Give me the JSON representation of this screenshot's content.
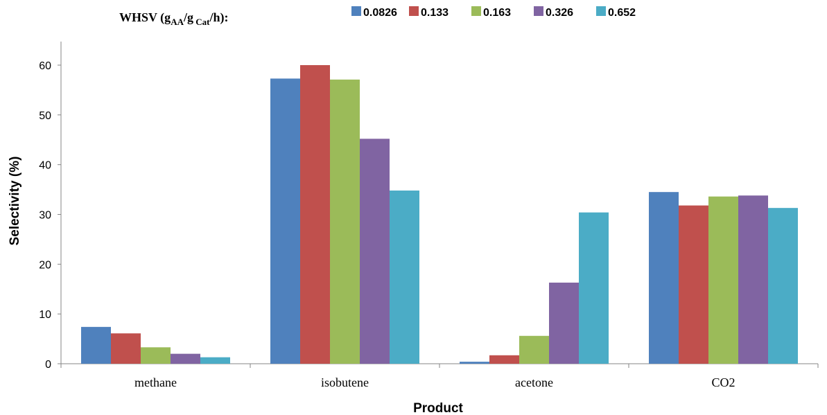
{
  "chart_data": {
    "type": "bar",
    "xlabel": "Product",
    "ylabel": "Selectivity (%)",
    "ylim": [
      0,
      60
    ],
    "yticks": [
      0,
      10,
      20,
      30,
      40,
      50,
      60
    ],
    "categories": [
      "methane",
      "isobutene",
      "acetone",
      "CO2"
    ],
    "legend": {
      "placement": "top",
      "prefix": {
        "main": "WHSV (g",
        "sub1": "AA",
        "mid": "/g",
        "sub2": " Cat",
        "end": "/h):"
      }
    },
    "series": [
      {
        "name": "0.0826",
        "color": "#4F81BD",
        "values": [
          7.4,
          57.3,
          0.4,
          34.5
        ]
      },
      {
        "name": "0.133",
        "color": "#C0504D",
        "values": [
          6.1,
          60.0,
          1.7,
          31.8
        ]
      },
      {
        "name": "0.163",
        "color": "#9BBB59",
        "values": [
          3.3,
          57.1,
          5.6,
          33.6
        ]
      },
      {
        "name": "0.326",
        "color": "#8064A2",
        "values": [
          2.0,
          45.2,
          16.3,
          33.8
        ]
      },
      {
        "name": "0.652",
        "color": "#4BACC6",
        "values": [
          1.3,
          34.8,
          30.4,
          31.3
        ]
      }
    ],
    "grid": false
  }
}
